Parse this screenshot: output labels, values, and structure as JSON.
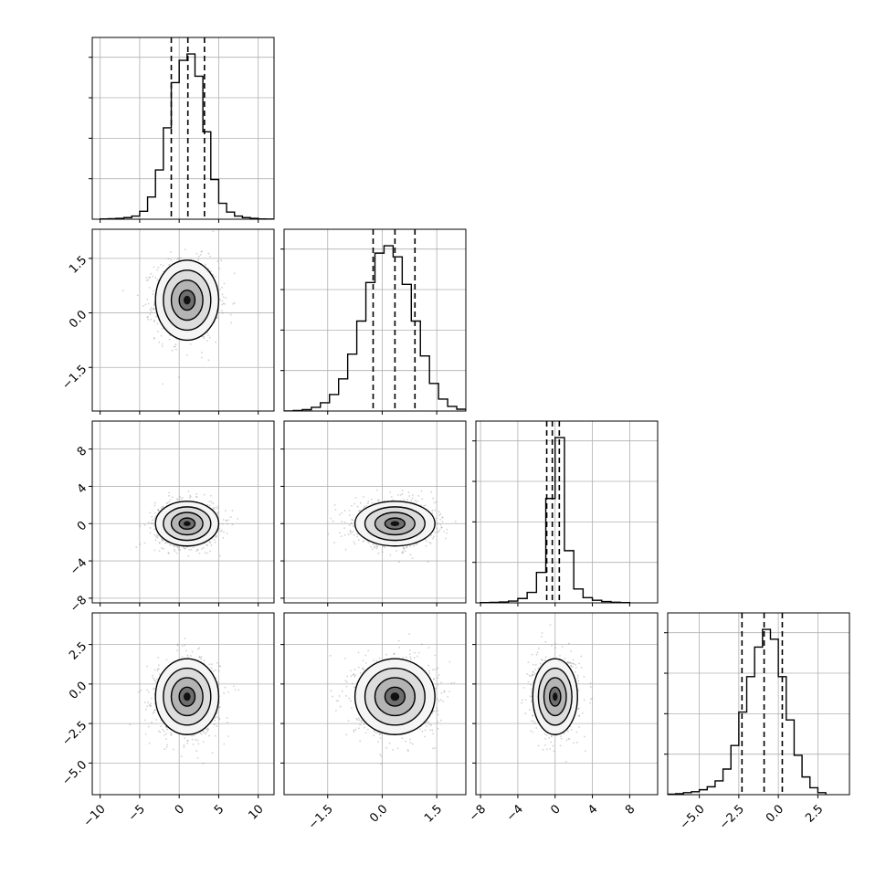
{
  "chart_data": {
    "type": "corner",
    "grid": true,
    "colors": {
      "line": "#000000",
      "points": "#7f7f7f",
      "grid": "#b0b0b0",
      "background": "#ffffff"
    },
    "parameters": [
      {
        "range": [
          -11,
          12
        ],
        "ticks": [
          -10,
          -5,
          0,
          5,
          10
        ],
        "tick_labels": [
          "−10",
          "−5",
          "0",
          "5",
          "10"
        ],
        "mean": 1.0,
        "sd": 2.0,
        "quantiles": [
          -1.0,
          1.1,
          3.2
        ],
        "hist_edges": [
          -10,
          -9,
          -8,
          -7,
          -6,
          -5,
          -4,
          -3,
          -2,
          -1,
          0,
          1,
          2,
          3,
          4,
          5,
          6,
          7,
          8,
          9,
          10,
          11,
          12
        ],
        "hist_counts": [
          0.3,
          0.6,
          1,
          2,
          4,
          10,
          28,
          62,
          115,
          172,
          200,
          208,
          180,
          110,
          50,
          20,
          9,
          4,
          2,
          1,
          0.4,
          0.2
        ]
      },
      {
        "range": [
          -2.7,
          2.3
        ],
        "ticks": [
          -1.5,
          0.0,
          1.5
        ],
        "tick_labels": [
          "−1.5",
          "0.0",
          "1.5"
        ],
        "mean": 0.35,
        "sd": 0.55,
        "quantiles": [
          -0.25,
          0.35,
          0.9
        ],
        "hist_edges": [
          -2.7,
          -2.45,
          -2.2,
          -1.95,
          -1.7,
          -1.45,
          -1.2,
          -0.95,
          -0.7,
          -0.45,
          -0.2,
          0.05,
          0.3,
          0.55,
          0.8,
          1.05,
          1.3,
          1.55,
          1.8,
          2.05,
          2.3
        ],
        "hist_counts": [
          0,
          0.5,
          1.5,
          4,
          9,
          18,
          35,
          62,
          98,
          140,
          172,
          180,
          168,
          138,
          98,
          60,
          30,
          13,
          5,
          2
        ]
      },
      {
        "range": [
          -8.5,
          11
        ],
        "ticks": [
          -8,
          -4,
          0,
          4,
          8
        ],
        "tick_labels": [
          "−8",
          "−4",
          "0",
          "4",
          "8"
        ],
        "mean": 0.0,
        "sd": 1.2,
        "quantiles": [
          -0.9,
          -0.3,
          0.45
        ],
        "hist_edges": [
          -8,
          -7,
          -6,
          -5,
          -4,
          -3,
          -2,
          -1,
          0,
          1,
          2,
          3,
          4,
          5,
          6,
          7,
          8
        ],
        "hist_counts": [
          0.3,
          0.6,
          1,
          2,
          5,
          12,
          35,
          120,
          190,
          60,
          16,
          6,
          3,
          1.5,
          0.7,
          0.3
        ]
      },
      {
        "range": [
          -7.0,
          4.5
        ],
        "ticks": [
          -5.0,
          -2.5,
          0.0,
          2.5
        ],
        "tick_labels": [
          "−5.0",
          "−2.5",
          "0.0",
          "2.5"
        ],
        "mean": -0.8,
        "sd": 1.2,
        "quantiles": [
          -2.3,
          -0.9,
          0.25
        ],
        "hist_edges": [
          -7,
          -6.5,
          -6,
          -5.5,
          -5,
          -4.5,
          -4,
          -3.5,
          -3,
          -2.5,
          -2,
          -1.5,
          -1,
          -0.5,
          0,
          0.5,
          1,
          1.5,
          2,
          2.5,
          3
        ],
        "hist_counts": [
          0.5,
          1,
          2,
          3,
          5,
          8,
          14,
          26,
          50,
          84,
          120,
          150,
          168,
          158,
          120,
          76,
          40,
          18,
          7,
          2
        ]
      }
    ]
  }
}
